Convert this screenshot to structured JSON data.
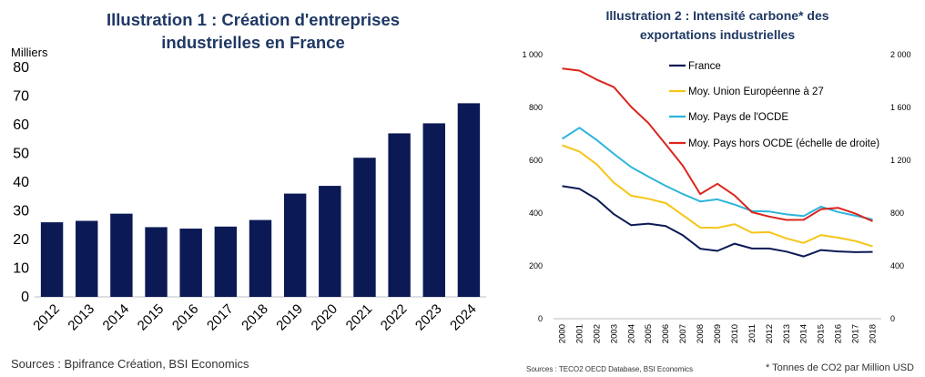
{
  "chart_data": [
    {
      "type": "bar",
      "title_line1": "Illustration 1 : Création d'entreprises",
      "title_line2": "industrielles en France",
      "ylabel": "Milliers",
      "ylim": [
        0,
        80
      ],
      "yticks": [
        "0",
        "10",
        "20",
        "30",
        "40",
        "50",
        "60",
        "70",
        "80"
      ],
      "categories": [
        "2012",
        "2013",
        "2014",
        "2015",
        "2016",
        "2017",
        "2018",
        "2019",
        "2020",
        "2021",
        "2022",
        "2023",
        "2024"
      ],
      "values": [
        26,
        26.5,
        29,
        24.3,
        23.8,
        24.5,
        26.8,
        36,
        38.7,
        48.5,
        57,
        60.5,
        67.5
      ],
      "bar_color": "#0B1A55",
      "source": "Sources : Bpifrance Création, BSI Economics"
    },
    {
      "type": "line",
      "title_line1": "Illustration 2 : Intensité carbone* des",
      "title_line2": "exportations industrielles",
      "x": [
        "2000",
        "2001",
        "2002",
        "2003",
        "2004",
        "2005",
        "2006",
        "2007",
        "2008",
        "2009",
        "2010",
        "2011",
        "2012",
        "2013",
        "2014",
        "2015",
        "2016",
        "2017",
        "2018"
      ],
      "ylim_left": [
        0,
        1000
      ],
      "yticks_left": [
        "0",
        "200",
        "400",
        "600",
        "800",
        "1 000"
      ],
      "ylim_right": [
        0,
        2000
      ],
      "yticks_right": [
        "0",
        "400",
        "800",
        "1 200",
        "1 600",
        "2 000"
      ],
      "series": [
        {
          "name": "France",
          "axis": "left",
          "color": "#0B1A55",
          "values": [
            502,
            492,
            453,
            396,
            354,
            360,
            351,
            316,
            265,
            257,
            284,
            266,
            266,
            254,
            236,
            260,
            255,
            252,
            253
          ]
        },
        {
          "name": "Moy. Union Européenne à 27",
          "axis": "left",
          "color": "#F5C518",
          "values": [
            657,
            633,
            585,
            515,
            466,
            454,
            438,
            392,
            345,
            344,
            358,
            326,
            328,
            304,
            287,
            317,
            307,
            294,
            274
          ]
        },
        {
          "name": "Moy. Pays de l'OCDE",
          "axis": "left",
          "color": "#2EB4DB",
          "values": [
            681,
            723,
            677,
            624,
            574,
            538,
            503,
            472,
            444,
            452,
            432,
            408,
            406,
            395,
            389,
            424,
            404,
            390,
            376
          ]
        },
        {
          "name": "Moy. Pays hors OCDE (échelle de droite)",
          "axis": "right",
          "color": "#D9251D",
          "values": [
            1895,
            1879,
            1811,
            1754,
            1604,
            1482,
            1321,
            1158,
            944,
            1022,
            933,
            807,
            774,
            748,
            749,
            829,
            840,
            796,
            738
          ]
        }
      ],
      "source": "Sources : TECO2 OECD Database, BSI Economics",
      "note": "* Tonnes de CO2 par Million USD"
    }
  ]
}
